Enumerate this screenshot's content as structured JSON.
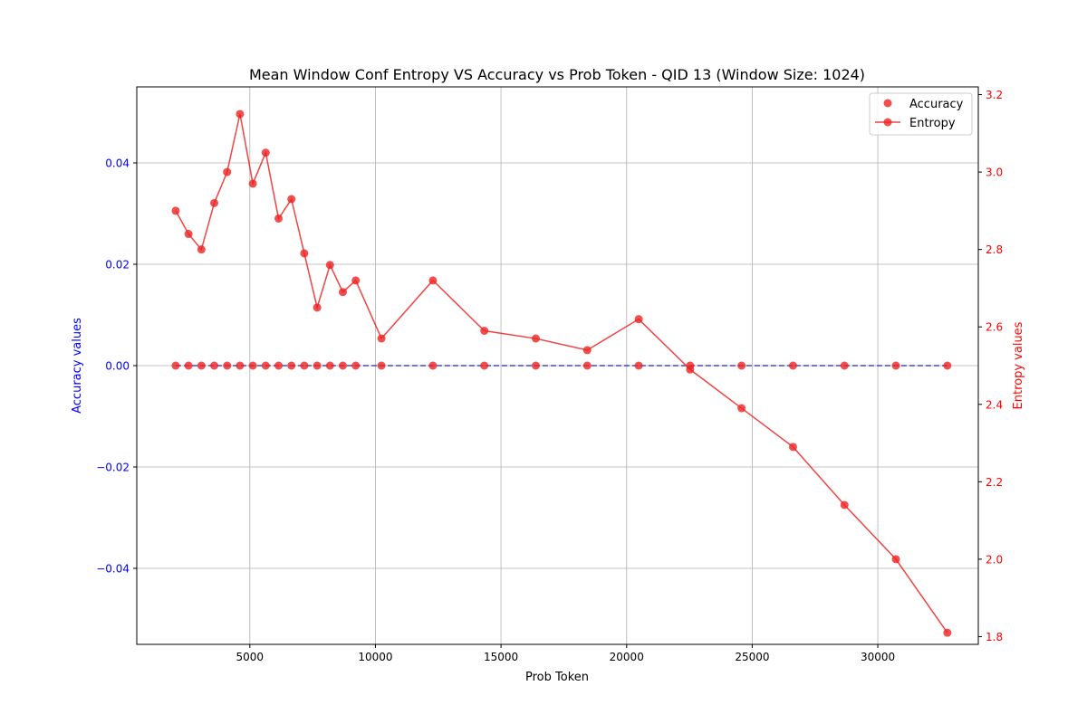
{
  "chart_data": {
    "type": "line",
    "title": "Mean Window Conf Entropy VS Accuracy vs Prob Token - QID 13 (Window Size: 1024)",
    "xlabel": "Prob Token",
    "ylabel_left": "Accuracy values",
    "ylabel_right": "Entropy values",
    "xlim": [
      500,
      34000
    ],
    "ylim_left": [
      -0.055,
      0.055
    ],
    "ylim_right": [
      1.78,
      3.22
    ],
    "x_ticks": [
      5000,
      10000,
      15000,
      20000,
      25000,
      30000
    ],
    "y_left_ticks": [
      -0.04,
      -0.02,
      0.0,
      0.02,
      0.04
    ],
    "y_left_tick_labels": [
      "−0.04",
      "−0.02",
      "0.00",
      "0.02",
      "0.04"
    ],
    "y_right_ticks": [
      1.8,
      2.0,
      2.2,
      2.4,
      2.6,
      2.8,
      3.0,
      3.2
    ],
    "y_right_tick_labels": [
      "1.8",
      "2.0",
      "2.2",
      "2.4",
      "2.6",
      "2.8",
      "3.0",
      "3.2"
    ],
    "grid": true,
    "legend_position": "top-right",
    "colors": {
      "accuracy": "#ee2222",
      "entropy": "#ee2222",
      "accuracy_line": "#2222cc",
      "left_axis": "#0000ff",
      "right_axis": "#ff0000"
    },
    "x": [
      2048,
      2560,
      3072,
      3584,
      4096,
      4608,
      5120,
      5632,
      6144,
      6656,
      7168,
      7680,
      8192,
      8704,
      9216,
      10240,
      12288,
      14336,
      16384,
      18432,
      20480,
      22528,
      24576,
      26624,
      28672,
      30720,
      32768
    ],
    "series": [
      {
        "name": "Accuracy",
        "axis": "left",
        "style": "scatter",
        "values": [
          0,
          0,
          0,
          0,
          0,
          0,
          0,
          0,
          0,
          0,
          0,
          0,
          0,
          0,
          0,
          0,
          0,
          0,
          0,
          0,
          0,
          0,
          0,
          0,
          0,
          0,
          0
        ]
      },
      {
        "name": "Entropy",
        "axis": "right",
        "style": "line-marker",
        "values": [
          2.9,
          2.84,
          2.8,
          2.92,
          3.0,
          3.15,
          2.97,
          3.05,
          2.88,
          2.93,
          2.79,
          2.65,
          2.76,
          2.69,
          2.72,
          2.57,
          2.72,
          2.59,
          2.57,
          2.54,
          2.62,
          2.49,
          2.39,
          2.29,
          2.14,
          2.0,
          1.81
        ]
      }
    ]
  }
}
